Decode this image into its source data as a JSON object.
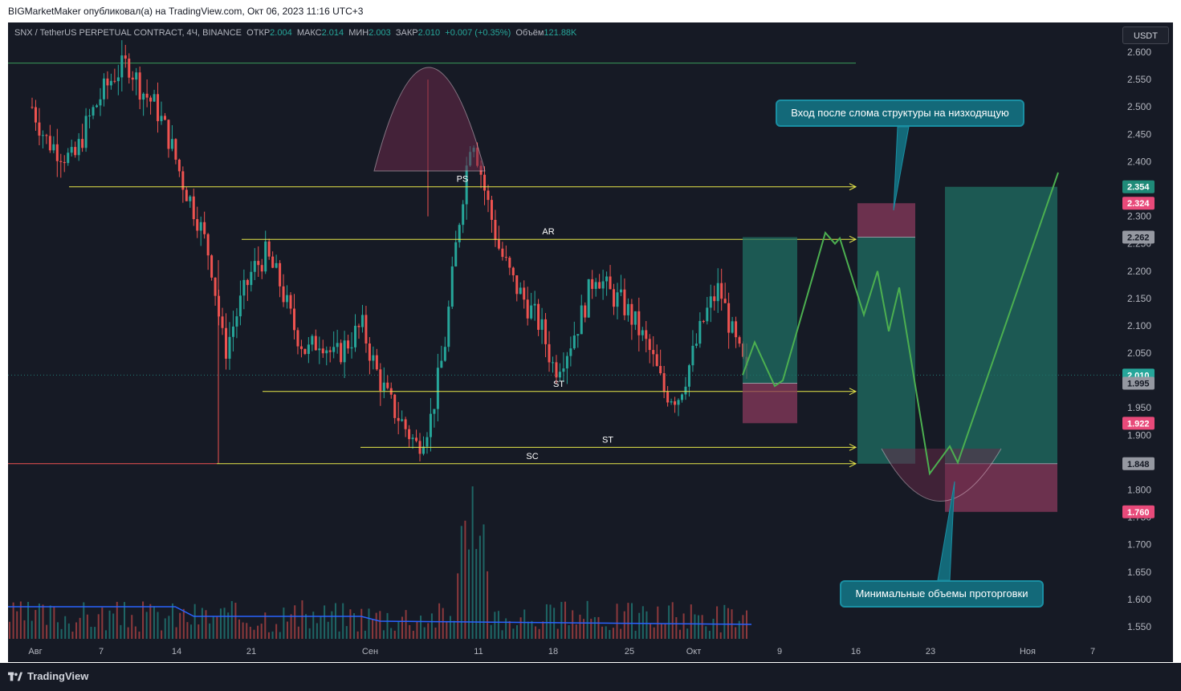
{
  "publisher": "BIGMarketMaker опубликовал(а) на TradingView.com, Окт 06, 2023 11:16 UTC+3",
  "legend": {
    "symbol": "SNX / TetherUS PERPETUAL CONTRACT, 4Ч, BINANCE",
    "open_label": "ОТКР",
    "open": "2.004",
    "high_label": "МАКС",
    "high": "2.014",
    "low_label": "МИН",
    "low": "2.003",
    "close_label": "ЗАКР",
    "close": "2.010",
    "change": "+0.007 (+0.35%)",
    "volume_label": "Объём",
    "volume": "121.88K"
  },
  "currency_button": "USDT",
  "brand": "TradingView",
  "callouts": {
    "entry": "Вход после слома структуры на низходящую",
    "volume": "Минимальные объемы проторговки"
  },
  "colors": {
    "background": "#161a25",
    "up": "#26a69a",
    "down": "#ef5350",
    "level_line": "#e8e84a",
    "projection": "#4caf50",
    "volume_ma": "#2962ff",
    "callout": "#136979"
  },
  "chart_data": {
    "type": "candlestick",
    "symbol": "SNX / TetherUS PERPETUAL CONTRACT",
    "timeframe": "4Ч",
    "exchange": "BINANCE",
    "last": {
      "open": 2.004,
      "high": 2.014,
      "low": 2.003,
      "close": 2.01,
      "change": "+0.007 (+0.35%)",
      "volume": "121.88K"
    },
    "y_axis": {
      "ticks": [
        "2.600",
        "2.550",
        "2.500",
        "2.450",
        "2.400",
        "2.350",
        "2.300",
        "2.250",
        "2.200",
        "2.150",
        "2.100",
        "2.050",
        "2.000",
        "1.950",
        "1.900",
        "1.850",
        "1.800",
        "1.750",
        "1.700",
        "1.650",
        "1.600",
        "1.550"
      ],
      "tick_values": [
        2.6,
        2.55,
        2.5,
        2.45,
        2.4,
        2.35,
        2.3,
        2.25,
        2.2,
        2.15,
        2.1,
        2.05,
        2.0,
        1.95,
        1.9,
        1.85,
        1.8,
        1.75,
        1.7,
        1.65,
        1.6,
        1.55
      ],
      "range": [
        1.53,
        2.62
      ]
    },
    "x_axis": {
      "ticks": [
        "Авг",
        "7",
        "14",
        "21",
        "Сен",
        "11",
        "18",
        "25",
        "Окт",
        "9",
        "16",
        "23",
        "Ноя",
        "7"
      ]
    },
    "price_labels": [
      {
        "value": 2.354,
        "text": "2.354",
        "kind": "target"
      },
      {
        "value": 2.324,
        "text": "2.324",
        "kind": "stop"
      },
      {
        "value": 2.262,
        "text": "2.262",
        "kind": "entry"
      },
      {
        "value": 2.01,
        "text": "2.010",
        "kind": "last"
      },
      {
        "value": 1.995,
        "text": "1.995",
        "kind": "entry"
      },
      {
        "value": 1.922,
        "text": "1.922",
        "kind": "stop"
      },
      {
        "value": 1.848,
        "text": "1.848",
        "kind": "entry"
      },
      {
        "value": 1.76,
        "text": "1.760",
        "kind": "stop"
      }
    ],
    "levels": [
      {
        "label": "PS",
        "value": 2.354
      },
      {
        "label": "AR",
        "value": 2.258
      },
      {
        "label": "ST",
        "value": 1.98
      },
      {
        "label": "ST",
        "value": 1.878
      },
      {
        "label": "SC",
        "value": 1.848
      }
    ],
    "resistance_line": 2.58,
    "positions": [
      {
        "kind": "long",
        "entry": 1.995,
        "target": 2.262,
        "stop": 1.922
      },
      {
        "kind": "short",
        "entry": 2.262,
        "target": 1.848,
        "stop": 2.324
      },
      {
        "kind": "long",
        "entry": 1.848,
        "target": 2.354,
        "stop": 1.76
      }
    ],
    "projection_path": [
      2.01,
      2.07,
      1.99,
      2.0,
      2.27,
      2.25,
      2.26,
      2.12,
      2.2,
      2.09,
      2.17,
      1.83,
      1.88,
      1.85,
      2.38
    ],
    "price_path": [
      2.5,
      2.44,
      2.42,
      2.4,
      2.47,
      2.52,
      2.56,
      2.58,
      2.53,
      2.5,
      2.44,
      2.36,
      2.3,
      2.22,
      2.05,
      2.13,
      2.2,
      2.23,
      2.18,
      2.1,
      2.05,
      2.08,
      2.04,
      2.07,
      2.1,
      2.02,
      1.96,
      1.92,
      1.88,
      1.93,
      2.06,
      2.28,
      2.46,
      2.34,
      2.24,
      2.18,
      2.14,
      2.1,
      2.02,
      2.06,
      2.12,
      2.2,
      2.16,
      2.14,
      2.1,
      2.05,
      1.98,
      1.97,
      2.04,
      2.12,
      2.17,
      2.08,
      2.01
    ]
  }
}
